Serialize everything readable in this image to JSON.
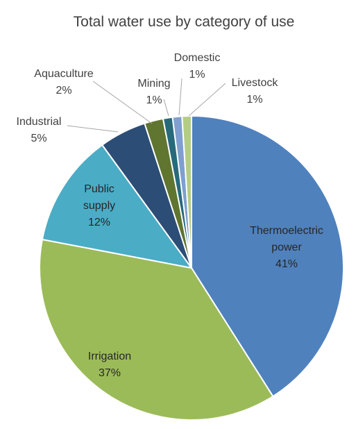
{
  "chart_data": {
    "type": "pie",
    "title": "Total water use by category of use",
    "slices": [
      {
        "label": "Thermoelectric power",
        "lines": [
          "Thermoelectric",
          "power"
        ],
        "value": 41,
        "value_label": "41%",
        "color": "#4f81bd"
      },
      {
        "label": "Irrigation",
        "lines": [
          "Irrigation"
        ],
        "value": 37,
        "value_label": "37%",
        "color": "#9bbb59"
      },
      {
        "label": "Public supply",
        "lines": [
          "Public",
          "supply"
        ],
        "value": 12,
        "value_label": "12%",
        "color": "#4bacc6"
      },
      {
        "label": "Industrial",
        "lines": [
          "Industrial"
        ],
        "value": 5,
        "value_label": "5%",
        "color": "#2c4d75"
      },
      {
        "label": "Aquaculture",
        "lines": [
          "Aquaculture"
        ],
        "value": 2,
        "value_label": "2%",
        "color": "#5f7530"
      },
      {
        "label": "Mining",
        "lines": [
          "Mining"
        ],
        "value": 1,
        "value_label": "1%",
        "color": "#276a7c"
      },
      {
        "label": "Domestic",
        "lines": [
          "Domestic"
        ],
        "value": 1,
        "value_label": "1%",
        "color": "#7f9fd0"
      },
      {
        "label": "Livestock",
        "lines": [
          "Livestock"
        ],
        "value": 1,
        "value_label": "1%",
        "color": "#b4cd84"
      }
    ]
  }
}
